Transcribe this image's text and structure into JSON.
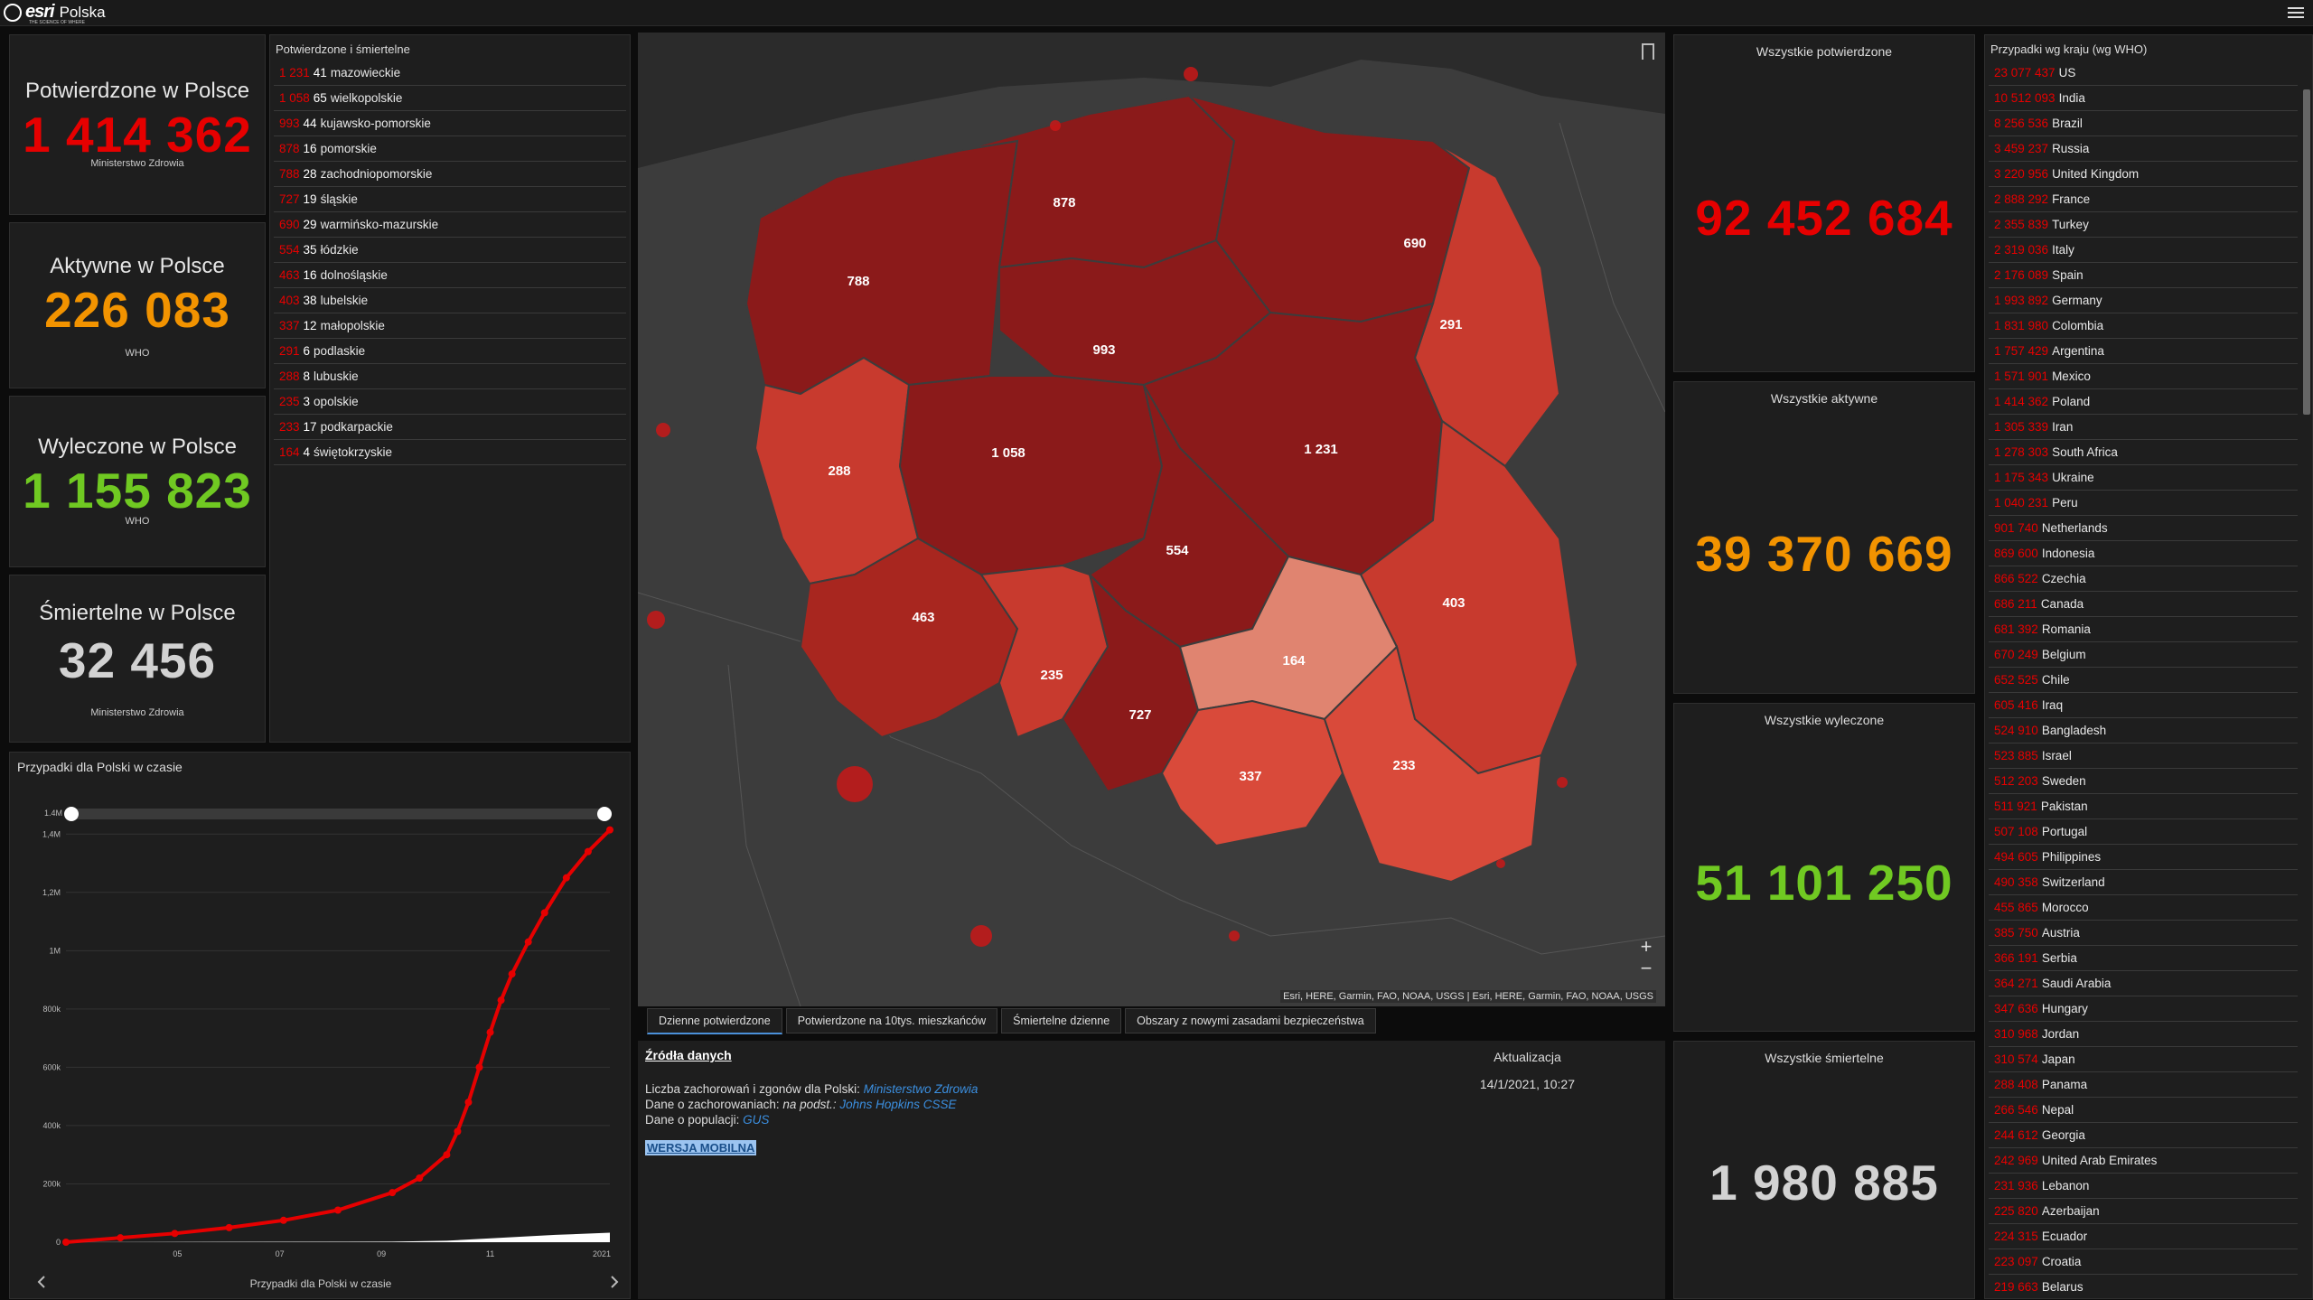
{
  "app": {
    "brand": "Polska",
    "logo_text": "esri",
    "logo_tag": "THE SCIENCE OF WHERE"
  },
  "stats": {
    "confirmed_pl": {
      "label": "Potwierdzone w Polsce",
      "value": "1 414 362",
      "source": "Ministerstwo Zdrowia",
      "color": "#e60000"
    },
    "active_pl": {
      "label": "Aktywne w Polsce",
      "value": "226 083",
      "source": "WHO",
      "color": "#f29300"
    },
    "recovered_pl": {
      "label": "Wyleczone w Polsce",
      "value": "1 155 823",
      "source": "WHO",
      "color": "#70c922"
    },
    "deaths_pl": {
      "label": "Śmiertelne w Polsce",
      "value": "32 456",
      "source": "Ministerstwo Zdrowia",
      "color": "#d2d2d2"
    }
  },
  "regions": {
    "title": "Potwierdzone i śmiertelne",
    "items": [
      {
        "confirmed": "1 231",
        "deaths": "41",
        "name": "mazowieckie"
      },
      {
        "confirmed": "1 058",
        "deaths": "65",
        "name": "wielkopolskie"
      },
      {
        "confirmed": "993",
        "deaths": "44",
        "name": "kujawsko-pomorskie"
      },
      {
        "confirmed": "878",
        "deaths": "16",
        "name": "pomorskie"
      },
      {
        "confirmed": "788",
        "deaths": "28",
        "name": "zachodniopomorskie"
      },
      {
        "confirmed": "727",
        "deaths": "19",
        "name": "śląskie"
      },
      {
        "confirmed": "690",
        "deaths": "29",
        "name": "warmińsko-mazurskie"
      },
      {
        "confirmed": "554",
        "deaths": "35",
        "name": "łódzkie"
      },
      {
        "confirmed": "463",
        "deaths": "16",
        "name": "dolnośląskie"
      },
      {
        "confirmed": "403",
        "deaths": "38",
        "name": "lubelskie"
      },
      {
        "confirmed": "337",
        "deaths": "12",
        "name": "małopolskie"
      },
      {
        "confirmed": "291",
        "deaths": "6",
        "name": "podlaskie"
      },
      {
        "confirmed": "288",
        "deaths": "8",
        "name": "lubuskie"
      },
      {
        "confirmed": "235",
        "deaths": "3",
        "name": "opolskie"
      },
      {
        "confirmed": "233",
        "deaths": "17",
        "name": "podkarpackie"
      },
      {
        "confirmed": "164",
        "deaths": "4",
        "name": "świętokrzyskie"
      }
    ]
  },
  "chart": {
    "title": "Przypadki dla Polski w czasie",
    "footer": "Przypadki dla Polski w czasie",
    "slider_label": "1.4M"
  },
  "chart_data": {
    "type": "line",
    "y_ticks": [
      "0",
      "200k",
      "400k",
      "600k",
      "800k",
      "1M",
      "1,2M",
      "1,4M"
    ],
    "y_values": [
      0,
      200000,
      400000,
      600000,
      800000,
      1000000,
      1200000,
      1400000
    ],
    "x_ticks": [
      "05",
      "07",
      "09",
      "11",
      "2021"
    ],
    "ylim": [
      0,
      1500000
    ],
    "series": [
      {
        "color": "#e60000",
        "x": [
          0,
          0.1,
          0.2,
          0.3,
          0.4,
          0.5,
          0.6,
          0.65,
          0.7,
          0.72,
          0.74,
          0.76,
          0.78,
          0.8,
          0.82,
          0.85,
          0.88,
          0.92,
          0.96,
          1.0
        ],
        "values": [
          0,
          15000,
          30000,
          50000,
          75000,
          110000,
          170000,
          220000,
          300000,
          380000,
          480000,
          600000,
          720000,
          830000,
          920000,
          1030000,
          1130000,
          1250000,
          1340000,
          1414362
        ]
      },
      {
        "color": "#ffffff",
        "x": [
          0,
          0.6,
          0.7,
          0.8,
          0.9,
          1.0
        ],
        "values": [
          0,
          2000,
          5000,
          15000,
          25000,
          32456
        ]
      }
    ]
  },
  "map": {
    "attribution": "Esri, HERE, Garmin, FAO, NOAA, USGS | Esri, HERE, Garmin, FAO, NOAA, USGS",
    "zoom_in": "+",
    "zoom_out": "−",
    "labels": [
      "878",
      "690",
      "788",
      "993",
      "291",
      "1 058",
      "1 231",
      "288",
      "554",
      "403",
      "463",
      "164",
      "235",
      "727",
      "337",
      "233"
    ]
  },
  "tabs": [
    "Dzienne potwierdzone",
    "Potwierdzone na 10tys. mieszkańców",
    "Śmiertelne dzienne",
    "Obszary z nowymi zasadami bezpieczeństwa"
  ],
  "sources": {
    "heading": "Źródła danych",
    "line1_prefix": "Liczba zachorowań i zgonów dla Polski: ",
    "line1_link": "Ministerstwo Zdrowia",
    "line2_prefix": "Dane o zachorowaniach: ",
    "line2_mid": "na podst.: ",
    "line2_link": "Johns Hopkins CSSE",
    "line3_prefix": "Dane o populacji: ",
    "line3_link": "GUS",
    "mobile": "WERSJA MOBILNA",
    "update_label": "Aktualizacja",
    "update_time": "14/1/2021, 10:27"
  },
  "global": {
    "confirmed": {
      "label": "Wszystkie potwierdzone",
      "value": "92 452 684",
      "color": "#e60000"
    },
    "active": {
      "label": "Wszystkie aktywne",
      "value": "39 370 669",
      "color": "#f29300"
    },
    "recovered": {
      "label": "Wszystkie wyleczone",
      "value": "51 101 250",
      "color": "#70c922"
    },
    "deaths": {
      "label": "Wszystkie śmiertelne",
      "value": "1 980 885",
      "color": "#d2d2d2"
    }
  },
  "countries": {
    "title": "Przypadki wg kraju (wg WHO)",
    "items": [
      {
        "value": "23 077 437",
        "name": "US"
      },
      {
        "value": "10 512 093",
        "name": "India"
      },
      {
        "value": "8 256 536",
        "name": "Brazil"
      },
      {
        "value": "3 459 237",
        "name": "Russia"
      },
      {
        "value": "3 220 956",
        "name": "United Kingdom"
      },
      {
        "value": "2 888 292",
        "name": "France"
      },
      {
        "value": "2 355 839",
        "name": "Turkey"
      },
      {
        "value": "2 319 036",
        "name": "Italy"
      },
      {
        "value": "2 176 089",
        "name": "Spain"
      },
      {
        "value": "1 993 892",
        "name": "Germany"
      },
      {
        "value": "1 831 980",
        "name": "Colombia"
      },
      {
        "value": "1 757 429",
        "name": "Argentina"
      },
      {
        "value": "1 571 901",
        "name": "Mexico"
      },
      {
        "value": "1 414 362",
        "name": "Poland"
      },
      {
        "value": "1 305 339",
        "name": "Iran"
      },
      {
        "value": "1 278 303",
        "name": "South Africa"
      },
      {
        "value": "1 175 343",
        "name": "Ukraine"
      },
      {
        "value": "1 040 231",
        "name": "Peru"
      },
      {
        "value": "901 740",
        "name": "Netherlands"
      },
      {
        "value": "869 600",
        "name": "Indonesia"
      },
      {
        "value": "866 522",
        "name": "Czechia"
      },
      {
        "value": "686 211",
        "name": "Canada"
      },
      {
        "value": "681 392",
        "name": "Romania"
      },
      {
        "value": "670 249",
        "name": "Belgium"
      },
      {
        "value": "652 525",
        "name": "Chile"
      },
      {
        "value": "605 416",
        "name": "Iraq"
      },
      {
        "value": "524 910",
        "name": "Bangladesh"
      },
      {
        "value": "523 885",
        "name": "Israel"
      },
      {
        "value": "512 203",
        "name": "Sweden"
      },
      {
        "value": "511 921",
        "name": "Pakistan"
      },
      {
        "value": "507 108",
        "name": "Portugal"
      },
      {
        "value": "494 605",
        "name": "Philippines"
      },
      {
        "value": "490 358",
        "name": "Switzerland"
      },
      {
        "value": "455 865",
        "name": "Morocco"
      },
      {
        "value": "385 750",
        "name": "Austria"
      },
      {
        "value": "366 191",
        "name": "Serbia"
      },
      {
        "value": "364 271",
        "name": "Saudi Arabia"
      },
      {
        "value": "347 636",
        "name": "Hungary"
      },
      {
        "value": "310 968",
        "name": "Jordan"
      },
      {
        "value": "310 574",
        "name": "Japan"
      },
      {
        "value": "288 408",
        "name": "Panama"
      },
      {
        "value": "266 546",
        "name": "Nepal"
      },
      {
        "value": "244 612",
        "name": "Georgia"
      },
      {
        "value": "242 969",
        "name": "United Arab Emirates"
      },
      {
        "value": "231 936",
        "name": "Lebanon"
      },
      {
        "value": "225 820",
        "name": "Azerbaijan"
      },
      {
        "value": "224 315",
        "name": "Ecuador"
      },
      {
        "value": "223 097",
        "name": "Croatia"
      },
      {
        "value": "219 663",
        "name": "Belarus"
      }
    ]
  }
}
